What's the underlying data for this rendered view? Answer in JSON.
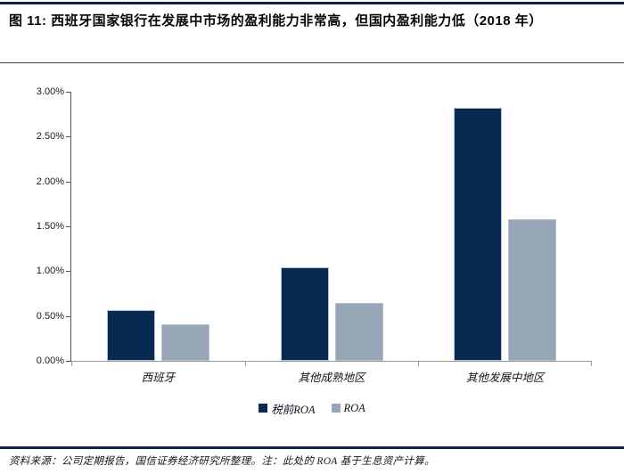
{
  "figure": {
    "title": "图 11: 西班牙国家银行在发展中市场的盈利能力非常高，但国内盈利能力低（2018 年）",
    "source_note": "资料来源：公司定期报告，国信证券经济研究所整理。注：此处的 ROA 基于生息资产计算。"
  },
  "chart_data": {
    "type": "bar",
    "categories": [
      "西班牙",
      "其他成熟地区",
      "其他发展中地区"
    ],
    "series": [
      {
        "name": "税前ROA",
        "color": "#072a52",
        "values": [
          0.57,
          1.04,
          2.82
        ]
      },
      {
        "name": "ROA",
        "color": "#96a6b6",
        "values": [
          0.41,
          0.65,
          1.58
        ]
      }
    ],
    "title": "",
    "xlabel": "",
    "ylabel": "",
    "ylim": [
      0,
      3.0
    ],
    "ytick_step": 0.5,
    "yticks": [
      "3.00%",
      "2.50%",
      "2.00%",
      "1.50%",
      "1.00%",
      "0.50%",
      "0.00%"
    ],
    "grid": false,
    "legend_position": "bottom"
  },
  "colors": {
    "rule": "#0f2348",
    "axis_y": "#54555c",
    "axis_x": "#9a9a9a",
    "bar_dark": "#072a52",
    "bar_light": "#96a6b6"
  }
}
